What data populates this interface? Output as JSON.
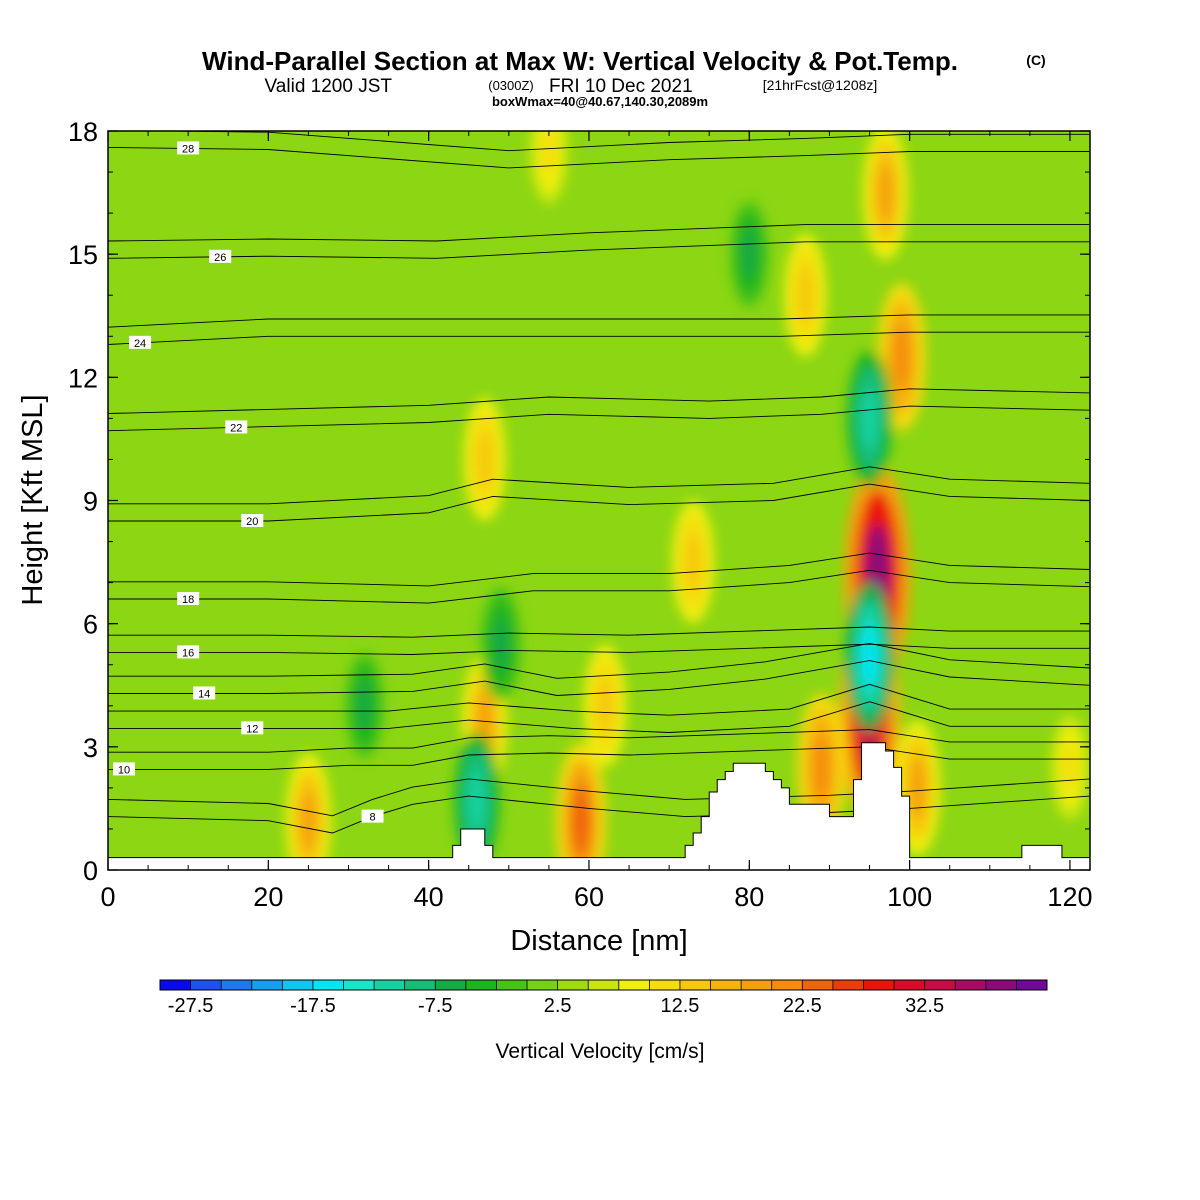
{
  "header": {
    "title": "Wind-Parallel Section at Max W: Vertical Velocity & Pot.Temp.",
    "copyright": "(C)",
    "valid_main": "Valid 1200 JST",
    "valid_z": "(0300Z)",
    "valid_date": "FRI 10 Dec 2021",
    "forecast": "[21hrFcst@1208z]",
    "box_info": "boxWmax=40@40.67,140.30,2089m"
  },
  "chart_data": {
    "type": "heatmap",
    "xlabel": "Distance [nm]",
    "ylabel": "Height [Kft MSL]",
    "xlim": [
      0,
      122.5
    ],
    "ylim": [
      0,
      18
    ],
    "x_ticks": [
      0,
      20,
      40,
      60,
      80,
      100,
      120
    ],
    "y_ticks": [
      0,
      3,
      6,
      9,
      12,
      15,
      18
    ],
    "colorbar": {
      "label": "Vertical Velocity [cm/s]",
      "tick_labels": [
        "-27.5",
        "-17.5",
        "-7.5",
        "2.5",
        "12.5",
        "22.5",
        "32.5"
      ],
      "colors": [
        "#0a0af0",
        "#1e50f5",
        "#1e78f0",
        "#14a0f0",
        "#0ac8f0",
        "#00e6f0",
        "#14e6c8",
        "#14d2a0",
        "#14be78",
        "#14aa46",
        "#1eb41e",
        "#46c314",
        "#78d214",
        "#a0dc0a",
        "#c8e60a",
        "#f0f00a",
        "#f5dc0a",
        "#f5c80a",
        "#f5b40a",
        "#f5a00a",
        "#f58c0a",
        "#f0640a",
        "#eb3c0a",
        "#eb140a",
        "#dc0a28",
        "#c80a46",
        "#aa0a64",
        "#8c0a78",
        "#6e0a96"
      ]
    },
    "terrain_profile": [
      [
        0,
        0.3
      ],
      [
        42,
        0.3
      ],
      [
        43,
        0.6
      ],
      [
        44,
        1.0
      ],
      [
        46,
        1.0
      ],
      [
        47,
        0.6
      ],
      [
        48,
        0.3
      ],
      [
        70,
        0.3
      ],
      [
        72,
        0.6
      ],
      [
        73,
        0.9
      ],
      [
        74,
        1.3
      ],
      [
        75,
        1.9
      ],
      [
        76,
        2.2
      ],
      [
        77,
        2.4
      ],
      [
        78,
        2.6
      ],
      [
        81,
        2.6
      ],
      [
        82,
        2.4
      ],
      [
        83,
        2.2
      ],
      [
        84,
        2.0
      ],
      [
        85,
        1.6
      ],
      [
        89,
        1.6
      ],
      [
        90,
        1.3
      ],
      [
        92,
        1.3
      ],
      [
        93,
        2.2
      ],
      [
        94,
        3.1
      ],
      [
        96,
        3.1
      ],
      [
        97,
        2.9
      ],
      [
        98,
        2.5
      ],
      [
        99,
        1.8
      ],
      [
        100,
        0.3
      ],
      [
        113,
        0.3
      ],
      [
        114,
        0.6
      ],
      [
        118,
        0.6
      ],
      [
        119,
        0.3
      ],
      [
        122.5,
        0.3
      ]
    ],
    "vertical_velocity_features": [
      {
        "x": 25,
        "z": 1.2,
        "w": 15
      },
      {
        "x": 47,
        "z": 3.6,
        "w": 15
      },
      {
        "x": 47,
        "z": 10.0,
        "w": 12
      },
      {
        "x": 46,
        "z": 1.7,
        "w": -15
      },
      {
        "x": 49,
        "z": 5.5,
        "w": -10
      },
      {
        "x": 59,
        "z": 1.2,
        "w": 20
      },
      {
        "x": 62,
        "z": 4.0,
        "w": 12
      },
      {
        "x": 73,
        "z": 7.5,
        "w": 12
      },
      {
        "x": 55,
        "z": 17.5,
        "w": 8
      },
      {
        "x": 96,
        "z": 7.2,
        "w": 35
      },
      {
        "x": 95,
        "z": 3.7,
        "w": 30
      },
      {
        "x": 99,
        "z": 12.5,
        "w": 18
      },
      {
        "x": 97,
        "z": 16.5,
        "w": 15
      },
      {
        "x": 95,
        "z": 11.0,
        "w": -15
      },
      {
        "x": 95,
        "z": 5.2,
        "w": -18
      },
      {
        "x": 87,
        "z": 14.0,
        "w": 12
      },
      {
        "x": 89,
        "z": 2.5,
        "w": 18
      },
      {
        "x": 101,
        "z": 2.0,
        "w": 15
      },
      {
        "x": 80,
        "z": 15.0,
        "w": -8
      },
      {
        "x": 32,
        "z": 4.0,
        "w": -8
      },
      {
        "x": 120,
        "z": 2.5,
        "w": 8
      }
    ],
    "isentropes": [
      {
        "label": "8",
        "label_x": 33,
        "levels": [
          [
            0,
            1.3
          ],
          [
            20,
            1.2
          ],
          [
            28,
            0.9
          ],
          [
            33,
            1.3
          ],
          [
            38,
            1.6
          ],
          [
            45,
            1.8
          ],
          [
            60,
            1.5
          ],
          [
            72,
            1.3
          ],
          [
            90,
            1.4
          ],
          [
            100,
            1.5
          ],
          [
            122.5,
            1.8
          ]
        ]
      },
      {
        "label": "10",
        "label_x": 2,
        "levels": [
          [
            0,
            2.45
          ],
          [
            20,
            2.45
          ],
          [
            30,
            2.55
          ],
          [
            38,
            2.55
          ],
          [
            45,
            2.8
          ],
          [
            55,
            2.85
          ],
          [
            65,
            2.8
          ],
          [
            80,
            2.9
          ],
          [
            95,
            3.0
          ],
          [
            105,
            2.7
          ],
          [
            122.5,
            2.7
          ]
        ]
      },
      {
        "label": "12",
        "label_x": 18,
        "levels": [
          [
            0,
            3.45
          ],
          [
            20,
            3.45
          ],
          [
            35,
            3.45
          ],
          [
            45,
            3.65
          ],
          [
            58,
            3.45
          ],
          [
            70,
            3.35
          ],
          [
            85,
            3.5
          ],
          [
            95,
            4.1
          ],
          [
            105,
            3.5
          ],
          [
            122.5,
            3.5
          ]
        ]
      },
      {
        "label": "14",
        "label_x": 12,
        "levels": [
          [
            0,
            4.3
          ],
          [
            20,
            4.3
          ],
          [
            38,
            4.35
          ],
          [
            47,
            4.6
          ],
          [
            56,
            4.25
          ],
          [
            70,
            4.4
          ],
          [
            82,
            4.65
          ],
          [
            95,
            5.1
          ],
          [
            105,
            4.7
          ],
          [
            122.5,
            4.5
          ]
        ]
      },
      {
        "label": "16",
        "label_x": 10,
        "levels": [
          [
            0,
            5.3
          ],
          [
            20,
            5.3
          ],
          [
            38,
            5.25
          ],
          [
            50,
            5.35
          ],
          [
            65,
            5.3
          ],
          [
            80,
            5.4
          ],
          [
            95,
            5.5
          ],
          [
            105,
            5.4
          ],
          [
            122.5,
            5.4
          ]
        ]
      },
      {
        "label": "18",
        "label_x": 10,
        "levels": [
          [
            0,
            6.6
          ],
          [
            20,
            6.6
          ],
          [
            40,
            6.5
          ],
          [
            53,
            6.8
          ],
          [
            70,
            6.8
          ],
          [
            85,
            7.0
          ],
          [
            95,
            7.3
          ],
          [
            105,
            7.0
          ],
          [
            122.5,
            6.9
          ]
        ]
      },
      {
        "label": "20",
        "label_x": 18,
        "levels": [
          [
            0,
            8.5
          ],
          [
            20,
            8.5
          ],
          [
            40,
            8.7
          ],
          [
            48,
            9.1
          ],
          [
            65,
            8.9
          ],
          [
            83,
            9.0
          ],
          [
            95,
            9.4
          ],
          [
            105,
            9.1
          ],
          [
            122.5,
            9.0
          ]
        ]
      },
      {
        "label": "22",
        "label_x": 16,
        "levels": [
          [
            0,
            10.7
          ],
          [
            20,
            10.8
          ],
          [
            40,
            10.9
          ],
          [
            55,
            11.1
          ],
          [
            75,
            11.0
          ],
          [
            89,
            11.1
          ],
          [
            100,
            11.3
          ],
          [
            122.5,
            11.2
          ]
        ]
      },
      {
        "label": "24",
        "label_x": 4,
        "levels": [
          [
            0,
            12.8
          ],
          [
            20,
            13.0
          ],
          [
            40,
            13.0
          ],
          [
            49,
            13.0
          ],
          [
            70,
            13.0
          ],
          [
            84,
            13.0
          ],
          [
            100,
            13.1
          ],
          [
            122.5,
            13.1
          ]
        ]
      },
      {
        "label": "26",
        "label_x": 14,
        "levels": [
          [
            0,
            14.9
          ],
          [
            20,
            14.95
          ],
          [
            41,
            14.9
          ],
          [
            60,
            15.1
          ],
          [
            87,
            15.3
          ],
          [
            100,
            15.3
          ],
          [
            122.5,
            15.3
          ]
        ]
      },
      {
        "label": "28",
        "label_x": 10,
        "levels": [
          [
            0,
            17.6
          ],
          [
            20,
            17.55
          ],
          [
            50,
            17.1
          ],
          [
            70,
            17.3
          ],
          [
            87,
            17.4
          ],
          [
            100,
            17.5
          ],
          [
            122.5,
            17.5
          ]
        ]
      }
    ]
  }
}
